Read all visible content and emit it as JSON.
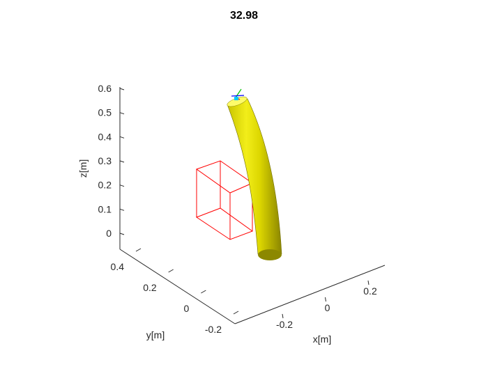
{
  "chart_data": {
    "type": "3d-surface",
    "title": "32.98",
    "xlabel": "x[m]",
    "ylabel": "y[m]",
    "zlabel": "z[m]",
    "x_ticks": [
      "-0.2",
      "0",
      "0.2"
    ],
    "y_ticks": [
      "-0.2",
      "0",
      "0.2",
      "0.4"
    ],
    "z_ticks": [
      "0",
      "0.1",
      "0.2",
      "0.3",
      "0.4",
      "0.5",
      "0.6"
    ],
    "grid": false,
    "objects": [
      {
        "name": "continuum robot tube",
        "color": "#e5e100"
      },
      {
        "name": "wireframe box",
        "color": "#ff0000"
      },
      {
        "name": "tip frame axes",
        "colors": [
          "#ff0000",
          "#00c000",
          "#0000ff"
        ]
      }
    ]
  }
}
